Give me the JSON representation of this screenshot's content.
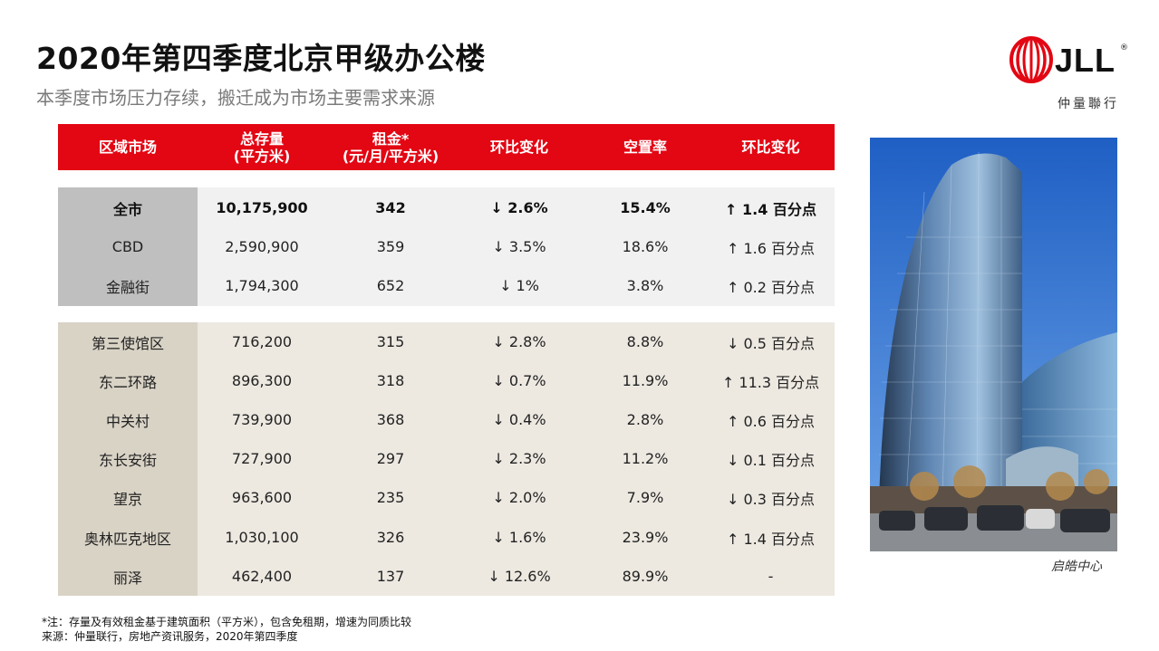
{
  "title": "2020年第四季度北京甲级办公楼",
  "subtitle": "本季度市场压力存续，搬迁成为市场主要需求来源",
  "logo": {
    "brand": "JLL",
    "reg": "®",
    "sub": "仲量聯行"
  },
  "colors": {
    "accent": "#e30613",
    "summary_band": "#f1f1f1",
    "district_band": "#ede9e1"
  },
  "table": {
    "headers": [
      {
        "line1": "区域市场",
        "line2": ""
      },
      {
        "line1": "总存量",
        "line2": "(平方米)"
      },
      {
        "line1": "租金*",
        "line2": "(元/月/平方米)"
      },
      {
        "line1": "环比变化",
        "line2": ""
      },
      {
        "line1": "空置率",
        "line2": ""
      },
      {
        "line1": "环比变化",
        "line2": ""
      }
    ],
    "summary_rows": [
      {
        "region": "全市",
        "stock": "10,175,900",
        "rent": "342",
        "rent_change": "↓ 2.6%",
        "vacancy": "15.4%",
        "vacancy_change": "↑ 1.4 百分点"
      },
      {
        "region": "CBD",
        "stock": "2,590,900",
        "rent": "359",
        "rent_change": "↓ 3.5%",
        "vacancy": "18.6%",
        "vacancy_change": "↑ 1.6 百分点"
      },
      {
        "region": "金融街",
        "stock": "1,794,300",
        "rent": "652",
        "rent_change": "↓ 1%",
        "vacancy": "3.8%",
        "vacancy_change": "↑ 0.2 百分点"
      }
    ],
    "district_rows": [
      {
        "region": "第三使馆区",
        "stock": "716,200",
        "rent": "315",
        "rent_change": "↓ 2.8%",
        "vacancy": "8.8%",
        "vacancy_change": "↓ 0.5 百分点"
      },
      {
        "region": "东二环路",
        "stock": "896,300",
        "rent": "318",
        "rent_change": "↓ 0.7%",
        "vacancy": "11.9%",
        "vacancy_change": "↑ 11.3 百分点"
      },
      {
        "region": "中关村",
        "stock": "739,900",
        "rent": "368",
        "rent_change": "↓ 0.4%",
        "vacancy": "2.8%",
        "vacancy_change": "↑ 0.6 百分点"
      },
      {
        "region": "东长安街",
        "stock": "727,900",
        "rent": "297",
        "rent_change": "↓ 2.3%",
        "vacancy": "11.2%",
        "vacancy_change": "↓ 0.1 百分点"
      },
      {
        "region": "望京",
        "stock": "963,600",
        "rent": "235",
        "rent_change": "↓ 2.0%",
        "vacancy": "7.9%",
        "vacancy_change": "↓ 0.3 百分点"
      },
      {
        "region": "奥林匹克地区",
        "stock": "1,030,100",
        "rent": "326",
        "rent_change": "↓ 1.6%",
        "vacancy": "23.9%",
        "vacancy_change": "↑ 1.4 百分点"
      },
      {
        "region": "丽泽",
        "stock": "462,400",
        "rent": "137",
        "rent_change": "↓ 12.6%",
        "vacancy": "89.9%",
        "vacancy_change": "-"
      }
    ]
  },
  "photo": {
    "caption": "启皓中心"
  },
  "notes": {
    "footnote": "*注：存量及有效租金基于建筑面积（平方米），包含免租期，增速为同质比较",
    "source": "来源：仲量联行，房地产资讯服务，2020年第四季度"
  }
}
